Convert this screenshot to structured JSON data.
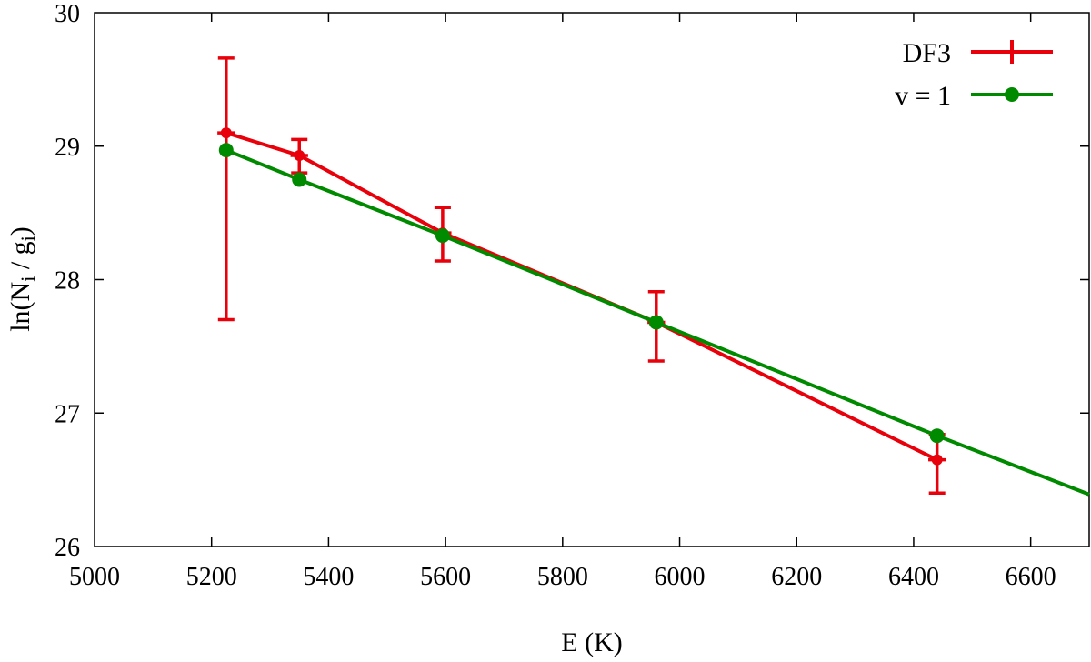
{
  "chart_data": {
    "type": "line",
    "xlabel": "E (K)",
    "ylabel": {
      "prefix": "ln(N",
      "sub1": "i",
      "mid": " / g",
      "sub2": "i",
      "suffix": ")"
    },
    "xlim": [
      5000,
      6700
    ],
    "ylim": [
      26,
      30
    ],
    "xticks": [
      5000,
      5200,
      5400,
      5600,
      5800,
      6000,
      6200,
      6400,
      6600
    ],
    "yticks": [
      26,
      27,
      28,
      29,
      30
    ],
    "grid": false,
    "legend_position": "top-right",
    "series": [
      {
        "name": "DF3",
        "color": "#e8000b",
        "style": "line-errorbar",
        "points": [
          {
            "x": 5225,
            "y": 29.1,
            "yerr_low": 27.7,
            "yerr_high": 29.66,
            "xerr": 15
          },
          {
            "x": 5350,
            "y": 28.93,
            "yerr_low": 28.8,
            "yerr_high": 29.05,
            "xerr": 15
          },
          {
            "x": 5595,
            "y": 28.35,
            "yerr_low": 28.14,
            "yerr_high": 28.54,
            "xerr": 15
          },
          {
            "x": 5960,
            "y": 27.68,
            "yerr_low": 27.39,
            "yerr_high": 27.91,
            "xerr": 15
          },
          {
            "x": 6440,
            "y": 26.65,
            "yerr_low": 26.4,
            "yerr_high": 26.84,
            "xerr": 15
          }
        ]
      },
      {
        "name": "v = 1",
        "color": "#008a00",
        "style": "line-markers",
        "points": [
          {
            "x": 5225,
            "y": 28.97
          },
          {
            "x": 5350,
            "y": 28.75
          },
          {
            "x": 5595,
            "y": 28.33
          },
          {
            "x": 5960,
            "y": 27.68
          },
          {
            "x": 6440,
            "y": 26.83
          }
        ],
        "line_end": {
          "x": 6700,
          "y": 26.39
        }
      }
    ]
  }
}
